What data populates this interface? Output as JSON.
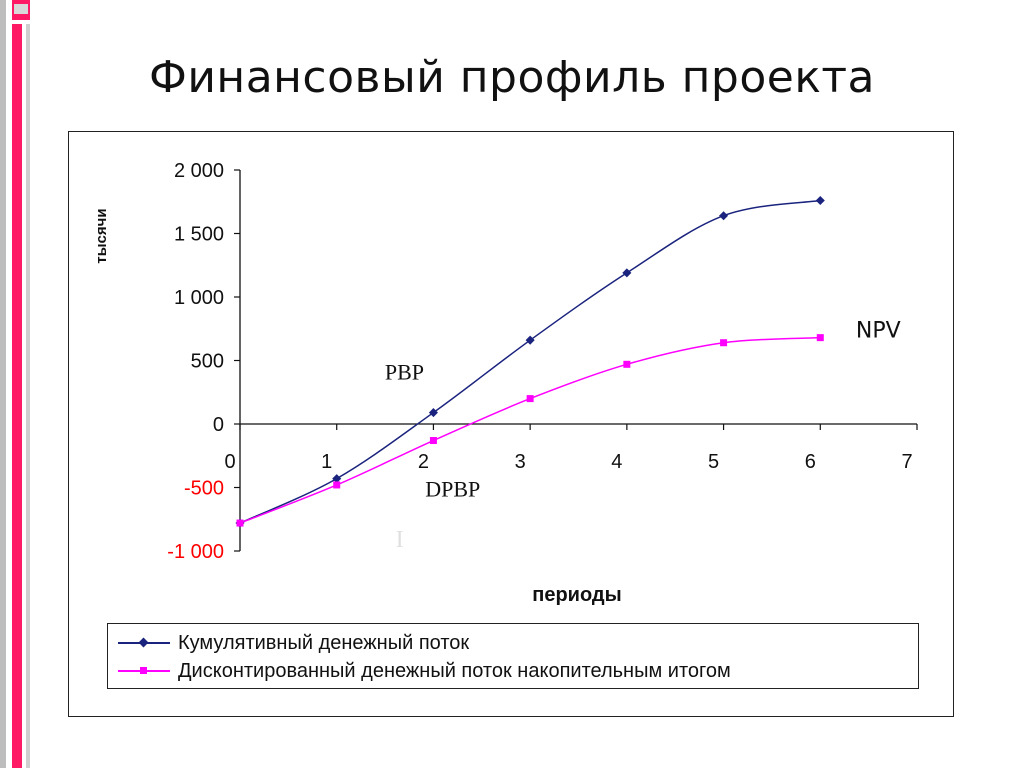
{
  "slide": {
    "title": "Финансовый профиль проекта",
    "accent_pink": "#ff1a66",
    "accent_gray": "#bdbdbd"
  },
  "chart_data": {
    "type": "line",
    "title": "",
    "xlabel": "периоды",
    "ylabel": "тысячи",
    "xlim": [
      0,
      7
    ],
    "ylim": [
      -1000,
      2000
    ],
    "x_ticks": [
      0,
      1,
      2,
      3,
      4,
      5,
      6,
      7
    ],
    "x_tick_labels": [
      "0",
      "1",
      "2",
      "3",
      "4",
      "5",
      "6",
      "7"
    ],
    "y_ticks": [
      2000,
      1500,
      1000,
      500,
      0,
      -500,
      -1000
    ],
    "y_tick_labels": [
      "2 000",
      "1 500",
      "1 000",
      "500",
      "0",
      "-500",
      "-1 000"
    ],
    "negative_tick_color": "#ff0000",
    "grid": false,
    "legend_position": "bottom",
    "series": [
      {
        "name": "Кумулятивный денежный поток",
        "color": "#1a237e",
        "marker": "diamond",
        "x": [
          0,
          1,
          2,
          3,
          4,
          5,
          6
        ],
        "values": [
          -780,
          -430,
          90,
          660,
          1190,
          1640,
          1760
        ]
      },
      {
        "name": "Дисконтированный денежный поток накопительным итогом",
        "color": "#ff00ff",
        "marker": "square",
        "x": [
          0,
          1,
          2,
          3,
          4,
          5,
          6
        ],
        "values": [
          -780,
          -480,
          -130,
          200,
          470,
          640,
          680
        ]
      }
    ],
    "annotations": [
      {
        "text": "PBP",
        "x": 1.7,
        "y": 350
      },
      {
        "text": "DPBP",
        "x": 2.2,
        "y": -570
      },
      {
        "text": "NPV",
        "x": 6.6,
        "y": 680
      },
      {
        "text": "I",
        "x": 1.65,
        "y": -970
      }
    ]
  }
}
